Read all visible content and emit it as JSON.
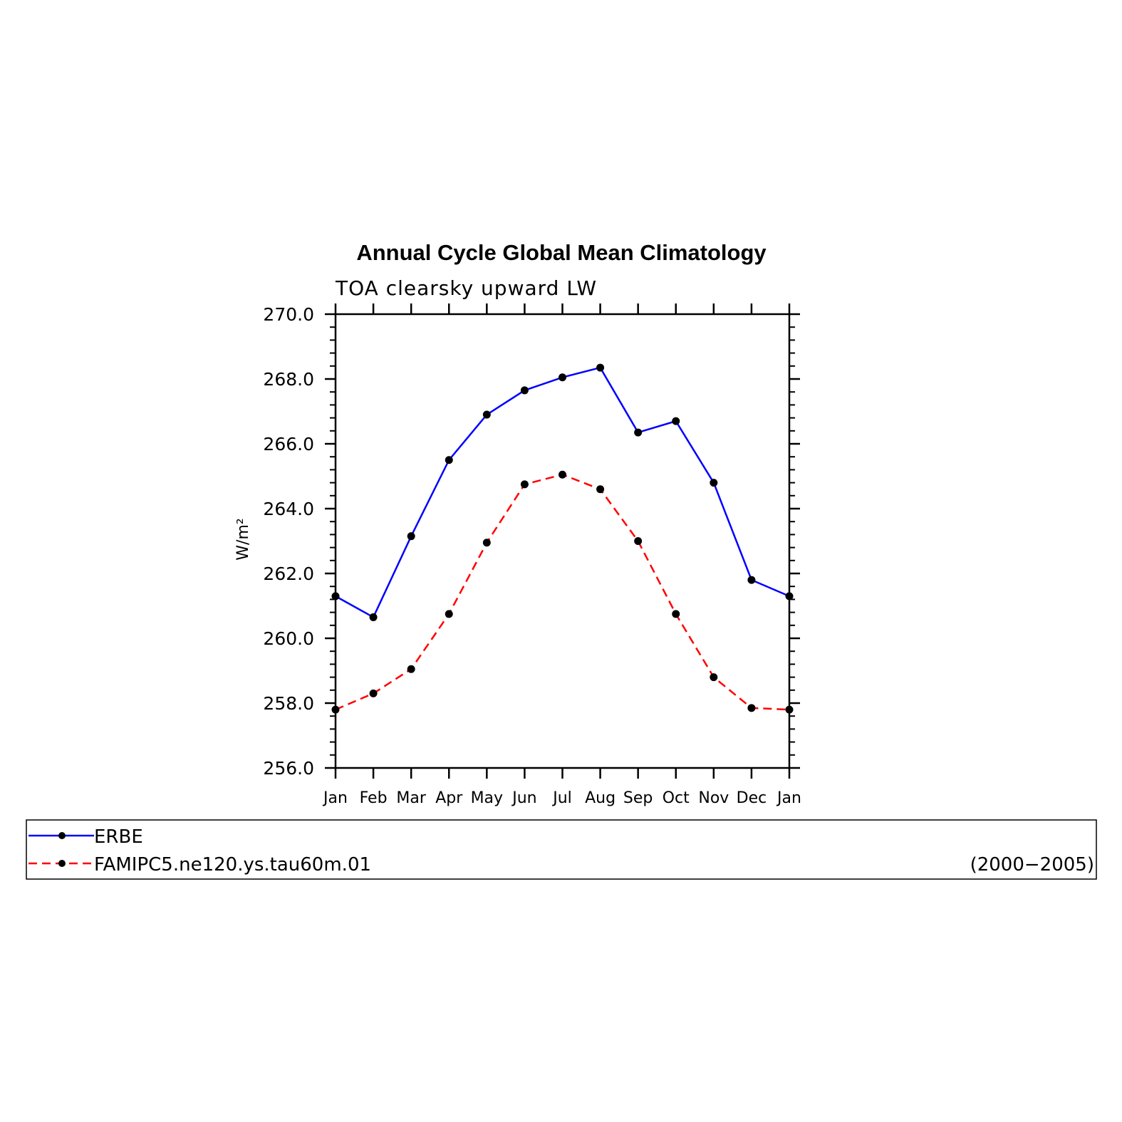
{
  "chart_data": {
    "type": "line",
    "title": "Annual Cycle Global Mean Climatology",
    "subtitle": "TOA clearsky upward LW",
    "ylabel": "W/m²",
    "xlabel": "",
    "categories": [
      "Jan",
      "Feb",
      "Mar",
      "Apr",
      "May",
      "Jun",
      "Jul",
      "Aug",
      "Sep",
      "Oct",
      "Nov",
      "Dec",
      "Jan"
    ],
    "ylim": [
      256.0,
      270.0
    ],
    "yticks": [
      256.0,
      258.0,
      260.0,
      262.0,
      264.0,
      266.0,
      268.0,
      270.0
    ],
    "ytick_labels": [
      "256.0",
      "258.0",
      "260.0",
      "262.0",
      "264.0",
      "266.0",
      "268.0",
      "270.0"
    ],
    "grid": false,
    "legend_position": "bottom",
    "series": [
      {
        "name": "ERBE",
        "color": "#0000ff",
        "dash": "solid",
        "marker": "filled-circle",
        "values": [
          261.3,
          260.65,
          263.15,
          265.5,
          266.9,
          267.65,
          268.05,
          268.35,
          266.35,
          266.7,
          264.8,
          261.8,
          261.3
        ]
      },
      {
        "name": "FAMIPC5.ne120.ys.tau60m.01",
        "color": "#ff0000",
        "dash": "dashed",
        "marker": "filled-circle",
        "values": [
          257.8,
          258.3,
          259.05,
          260.75,
          262.95,
          264.75,
          265.05,
          264.6,
          263.0,
          260.75,
          258.8,
          257.85,
          257.8
        ]
      }
    ],
    "legend_note": "(2000−2005)"
  }
}
